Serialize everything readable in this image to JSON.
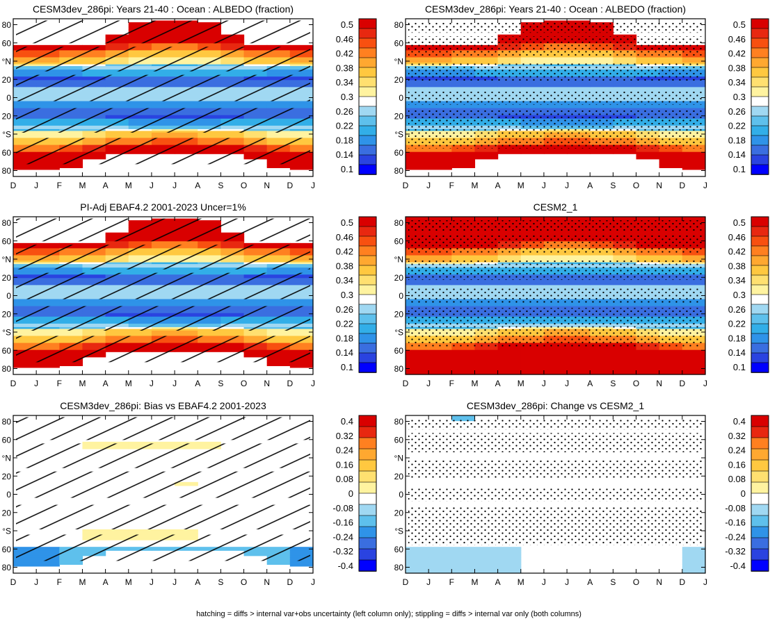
{
  "chart_data": [
    {
      "type": "heatmap",
      "title": "CESM3dev_286pi: Years 21-40 : Ocean : ALBEDO (fraction)",
      "x_ticks": [
        "D",
        "J",
        "F",
        "M",
        "A",
        "M",
        "J",
        "J",
        "A",
        "S",
        "O",
        "N",
        "D",
        "J"
      ],
      "y_ticks": [
        "80",
        "60",
        "°N",
        "20",
        "0",
        "20",
        "°S",
        "60",
        "80"
      ],
      "ylim": [
        -90,
        90
      ],
      "field": "albedo",
      "overlay": "hatch",
      "colorbar": {
        "labels": [
          "0.5",
          "0.46",
          "0.42",
          "0.38",
          "0.34",
          "0.3",
          "0.26",
          "0.22",
          "0.18",
          "0.14",
          "0.1"
        ]
      }
    },
    {
      "type": "heatmap",
      "title": "CESM3dev_286pi: Years 21-40 : Ocean : ALBEDO (fraction)",
      "x_ticks": [
        "D",
        "J",
        "F",
        "M",
        "A",
        "M",
        "J",
        "J",
        "A",
        "S",
        "O",
        "N",
        "D",
        "J"
      ],
      "y_ticks": [
        "80",
        "60",
        "°N",
        "20",
        "0",
        "20",
        "°S",
        "60",
        "80"
      ],
      "ylim": [
        -90,
        90
      ],
      "field": "albedo",
      "overlay": "stipple",
      "colorbar": {
        "labels": [
          "0.5",
          "0.46",
          "0.42",
          "0.38",
          "0.34",
          "0.3",
          "0.26",
          "0.22",
          "0.18",
          "0.14",
          "0.1"
        ]
      }
    },
    {
      "type": "heatmap",
      "title": "PI-Adj EBAF4.2 2001-2023 Uncer=1%",
      "x_ticks": [
        "D",
        "J",
        "F",
        "M",
        "A",
        "M",
        "J",
        "J",
        "A",
        "S",
        "O",
        "N",
        "D",
        "J"
      ],
      "y_ticks": [
        "80",
        "60",
        "°N",
        "20",
        "0",
        "20",
        "°S",
        "60",
        "80"
      ],
      "ylim": [
        -90,
        90
      ],
      "field": "albedo",
      "overlay": "hatch",
      "colorbar": {
        "labels": [
          "0.5",
          "0.46",
          "0.42",
          "0.38",
          "0.34",
          "0.3",
          "0.26",
          "0.22",
          "0.18",
          "0.14",
          "0.1"
        ]
      }
    },
    {
      "type": "heatmap",
      "title": "CESM2_1",
      "x_ticks": [
        "D",
        "J",
        "F",
        "M",
        "A",
        "M",
        "J",
        "J",
        "A",
        "S",
        "O",
        "N",
        "D",
        "J"
      ],
      "y_ticks": [
        "80",
        "60",
        "°N",
        "20",
        "0",
        "20",
        "°S",
        "60",
        "80"
      ],
      "ylim": [
        -90,
        90
      ],
      "field": "albedo_full",
      "overlay": "stipple",
      "colorbar": {
        "labels": [
          "0.5",
          "0.46",
          "0.42",
          "0.38",
          "0.34",
          "0.3",
          "0.26",
          "0.22",
          "0.18",
          "0.14",
          "0.1"
        ]
      }
    },
    {
      "type": "heatmap",
      "title": "CESM3dev_286pi: Bias vs EBAF4.2 2001-2023",
      "x_ticks": [
        "D",
        "J",
        "F",
        "M",
        "A",
        "M",
        "J",
        "J",
        "A",
        "S",
        "O",
        "N",
        "D",
        "J"
      ],
      "y_ticks": [
        "80",
        "60",
        "°N",
        "20",
        "0",
        "20",
        "°S",
        "60",
        "80"
      ],
      "ylim": [
        -90,
        90
      ],
      "field": "bias",
      "overlay": "hatch",
      "colorbar": {
        "labels": [
          "0.4",
          "0.32",
          "0.24",
          "0.16",
          "0.08",
          "0",
          "-0.08",
          "-0.16",
          "-0.24",
          "-0.32",
          "-0.4"
        ]
      }
    },
    {
      "type": "heatmap",
      "title": "CESM3dev_286pi: Change vs CESM2_1",
      "x_ticks": [
        "D",
        "J",
        "F",
        "M",
        "A",
        "M",
        "J",
        "J",
        "A",
        "S",
        "O",
        "N",
        "D",
        "J"
      ],
      "y_ticks": [
        "80",
        "60",
        "°N",
        "20",
        "0",
        "20",
        "°S",
        "60",
        "80"
      ],
      "ylim": [
        -90,
        90
      ],
      "field": "change",
      "overlay": "stipple",
      "colorbar": {
        "labels": [
          "0.4",
          "0.32",
          "0.24",
          "0.16",
          "0.08",
          "0",
          "-0.08",
          "-0.16",
          "-0.24",
          "-0.32",
          "-0.4"
        ]
      }
    }
  ],
  "colors": {
    "albedo_scale": [
      "#0000ff",
      "#2a43e0",
      "#3a6ee0",
      "#2f93e8",
      "#32aee8",
      "#5ec0ec",
      "#a0d8f2",
      "#ffffff",
      "#fff3a0",
      "#ffe070",
      "#ffc840",
      "#ffa830",
      "#ff8020",
      "#f85010",
      "#e82810",
      "#d90000"
    ],
    "bias_scale": [
      "#0000ff",
      "#2a43e0",
      "#3a6ee0",
      "#2f93e8",
      "#5ec0ec",
      "#a0d8f2",
      "#ffffff",
      "#fff3a0",
      "#ffe070",
      "#ffc840",
      "#ffa830",
      "#ff8020",
      "#e82810",
      "#d90000"
    ]
  },
  "footer": "hatching = diffs > internal var+obs uncertainty (left column only); stippling = diffs > internal var only (both columns)"
}
